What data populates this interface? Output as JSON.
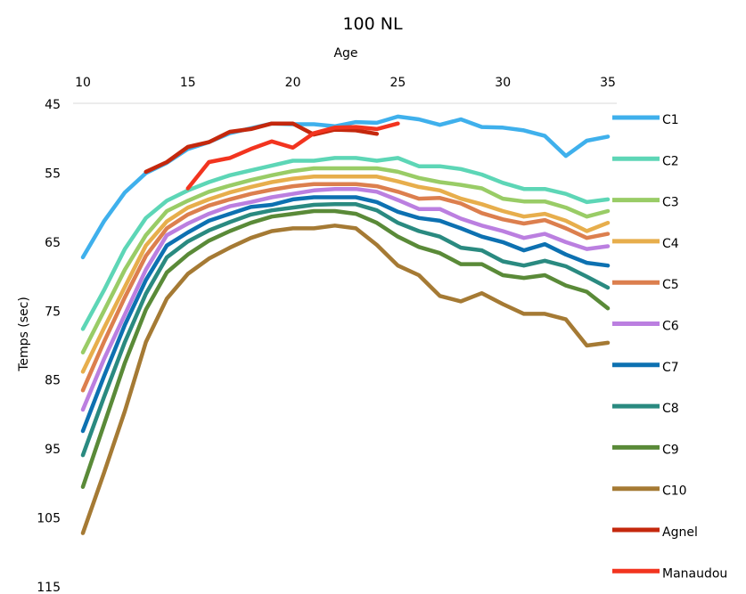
{
  "chart_data": {
    "type": "line",
    "title": "100 NL",
    "xlabel": "Age",
    "ylabel": "Temps (sec)",
    "x_axis_position": "top",
    "y_reversed": true,
    "xlim": [
      10,
      35
    ],
    "ylim": [
      45,
      115
    ],
    "xticks": [
      10,
      15,
      20,
      25,
      30,
      35
    ],
    "yticks": [
      45,
      55,
      65,
      75,
      85,
      95,
      105,
      115
    ],
    "legend_position": "right",
    "grid": false,
    "series": [
      {
        "name": "C1",
        "color": "#3fb0ec",
        "x": [
          10,
          11,
          12,
          13,
          14,
          15,
          16,
          17,
          18,
          19,
          20,
          21,
          22,
          23,
          24,
          25,
          26,
          27,
          28,
          29,
          30,
          31,
          32,
          33,
          34,
          35
        ],
        "values": [
          67.2,
          62,
          57.8,
          55,
          53.5,
          51.5,
          50.5,
          49.2,
          48.5,
          47.8,
          47.9,
          47.9,
          48.2,
          47.6,
          47.7,
          46.8,
          47.2,
          48,
          47.2,
          48.3,
          48.4,
          48.8,
          49.6,
          52.5,
          50.3,
          49.7
        ]
      },
      {
        "name": "C2",
        "color": "#5dd6b6",
        "x": [
          10,
          11,
          12,
          13,
          14,
          15,
          16,
          17,
          18,
          19,
          20,
          21,
          22,
          23,
          24,
          25,
          26,
          27,
          28,
          29,
          30,
          31,
          32,
          33,
          34,
          35
        ],
        "values": [
          77.6,
          72,
          66,
          61.5,
          59,
          57.5,
          56.3,
          55.3,
          54.6,
          53.9,
          53.2,
          53.2,
          52.8,
          52.8,
          53.2,
          52.8,
          54,
          54,
          54.4,
          55.2,
          56.4,
          57.3,
          57.3,
          58,
          59.2,
          58.8
        ]
      },
      {
        "name": "C3",
        "color": "#99cc66",
        "x": [
          10,
          11,
          12,
          13,
          14,
          15,
          16,
          17,
          18,
          19,
          20,
          21,
          22,
          23,
          24,
          25,
          26,
          27,
          28,
          29,
          30,
          31,
          32,
          33,
          34,
          35
        ],
        "values": [
          81,
          75,
          69,
          64,
          60.5,
          59,
          57.7,
          56.8,
          56,
          55.3,
          54.7,
          54.3,
          54.3,
          54.3,
          54.3,
          54.8,
          55.7,
          56.3,
          56.7,
          57.2,
          58.7,
          59.1,
          59.1,
          60,
          61.3,
          60.5
        ]
      },
      {
        "name": "C4",
        "color": "#e7ae4c",
        "x": [
          10,
          11,
          12,
          13,
          14,
          15,
          16,
          17,
          18,
          19,
          20,
          21,
          22,
          23,
          24,
          25,
          26,
          27,
          28,
          29,
          30,
          31,
          32,
          33,
          34,
          35
        ],
        "values": [
          83.8,
          77.5,
          71.5,
          65.5,
          62,
          60,
          58.8,
          57.8,
          57,
          56.3,
          55.8,
          55.5,
          55.5,
          55.5,
          55.5,
          56.2,
          57,
          57.5,
          58.7,
          59.5,
          60.5,
          61.3,
          60.9,
          61.9,
          63.4,
          62.2
        ]
      },
      {
        "name": "C5",
        "color": "#dc7f4e",
        "x": [
          10,
          11,
          12,
          13,
          14,
          15,
          16,
          17,
          18,
          19,
          20,
          21,
          22,
          23,
          24,
          25,
          26,
          27,
          28,
          29,
          30,
          31,
          32,
          33,
          34,
          35
        ],
        "values": [
          86.5,
          79.5,
          73,
          67,
          63,
          61,
          59.7,
          58.8,
          58,
          57.4,
          56.9,
          56.6,
          56.6,
          56.6,
          56.9,
          57.7,
          58.7,
          58.6,
          59.4,
          60.8,
          61.7,
          62.3,
          61.8,
          63,
          64.4,
          63.8
        ]
      },
      {
        "name": "C6",
        "color": "#bb7fe0",
        "x": [
          10,
          11,
          12,
          13,
          14,
          15,
          16,
          17,
          18,
          19,
          20,
          21,
          22,
          23,
          24,
          25,
          26,
          27,
          28,
          29,
          30,
          31,
          32,
          33,
          34,
          35
        ],
        "values": [
          89.3,
          82,
          75.5,
          69,
          64,
          62.3,
          60.9,
          59.8,
          59.2,
          58.5,
          58,
          57.5,
          57.3,
          57.3,
          57.7,
          58.9,
          60.2,
          60.2,
          61.6,
          62.6,
          63.4,
          64.4,
          63.8,
          65,
          66,
          65.6
        ]
      },
      {
        "name": "C7",
        "color": "#0d71b1",
        "x": [
          10,
          11,
          12,
          13,
          14,
          15,
          16,
          17,
          18,
          19,
          20,
          21,
          22,
          23,
          24,
          25,
          26,
          27,
          28,
          29,
          30,
          31,
          32,
          33,
          34,
          35
        ],
        "values": [
          92.4,
          84.5,
          77,
          70.5,
          65.5,
          63.6,
          61.9,
          60.9,
          59.9,
          59.6,
          58.8,
          58.5,
          58.5,
          58.5,
          59.2,
          60.6,
          61.5,
          61.9,
          63,
          64.2,
          65,
          66.2,
          65.3,
          66.8,
          68,
          68.4
        ]
      },
      {
        "name": "C8",
        "color": "#2a8a80",
        "x": [
          10,
          11,
          12,
          13,
          14,
          15,
          16,
          17,
          18,
          19,
          20,
          21,
          22,
          23,
          24,
          25,
          26,
          27,
          28,
          29,
          30,
          31,
          32,
          33,
          34,
          35
        ],
        "values": [
          95.9,
          87.5,
          79.5,
          72.5,
          67.2,
          64.9,
          63.3,
          62.1,
          61,
          60.4,
          60,
          59.6,
          59.5,
          59.5,
          60.4,
          62.2,
          63.4,
          64.2,
          65.8,
          66.2,
          67.8,
          68.4,
          67.7,
          68.5,
          70,
          71.6
        ]
      },
      {
        "name": "C9",
        "color": "#5a8a38",
        "x": [
          10,
          11,
          12,
          13,
          14,
          15,
          16,
          17,
          18,
          19,
          20,
          21,
          22,
          23,
          24,
          25,
          26,
          27,
          28,
          29,
          30,
          31,
          32,
          33,
          34,
          35
        ],
        "values": [
          100.5,
          91.5,
          82.5,
          74.8,
          69.4,
          66.8,
          64.8,
          63.4,
          62.2,
          61.3,
          60.9,
          60.5,
          60.5,
          60.9,
          62.2,
          64.2,
          65.7,
          66.6,
          68.2,
          68.2,
          69.8,
          70.2,
          69.8,
          71.3,
          72.2,
          74.6
        ]
      },
      {
        "name": "C10",
        "color": "#a57a34",
        "x": [
          10,
          11,
          12,
          13,
          14,
          15,
          16,
          17,
          18,
          19,
          20,
          21,
          22,
          23,
          24,
          25,
          26,
          27,
          28,
          29,
          30,
          31,
          32,
          33,
          34,
          35
        ],
        "values": [
          107.2,
          98.5,
          89.5,
          79.5,
          73.2,
          69.6,
          67.4,
          65.8,
          64.4,
          63.4,
          63,
          63,
          62.6,
          63,
          65.4,
          68.4,
          69.8,
          72.8,
          73.6,
          72.4,
          74,
          75.4,
          75.4,
          76.2,
          80,
          79.6
        ]
      },
      {
        "name": "Agnel",
        "color": "#c4280d",
        "x": [
          13,
          14,
          15,
          16,
          17,
          18,
          19,
          20,
          21,
          22,
          23,
          24
        ],
        "values": [
          54.8,
          53.4,
          51.2,
          50.5,
          49,
          48.6,
          47.8,
          47.8,
          49.4,
          48.7,
          48.8,
          49.3
        ]
      },
      {
        "name": "Manaudou",
        "color": "#f2341f",
        "x": [
          15,
          16,
          17,
          18,
          19,
          20,
          21,
          22,
          23,
          24,
          25
        ],
        "values": [
          57.2,
          53.4,
          52.8,
          51.5,
          50.4,
          51.3,
          49.2,
          48.4,
          48.3,
          48.6,
          47.8
        ]
      }
    ]
  }
}
